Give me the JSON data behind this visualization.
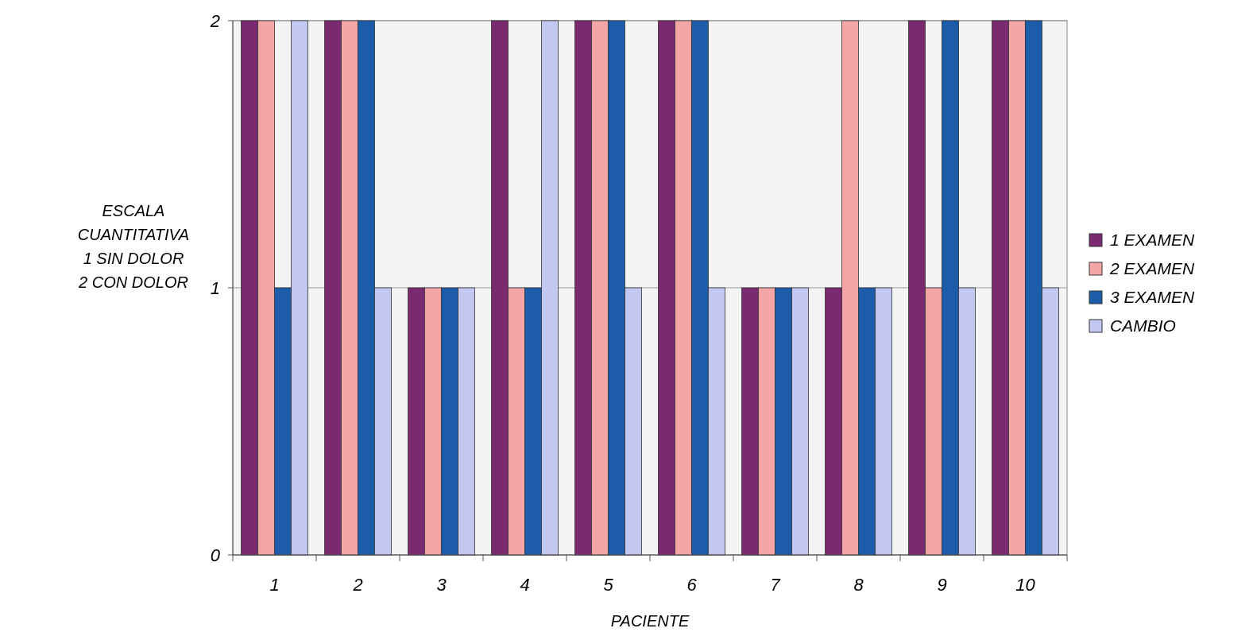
{
  "chart_data": {
    "type": "bar",
    "xlabel": "PACIENTE",
    "ylabel": "ESCALA\nCUANTITATIVA\n1 SIN DOLOR\n2 CON DOLOR",
    "categories": [
      "1",
      "2",
      "3",
      "4",
      "5",
      "6",
      "7",
      "8",
      "9",
      "10"
    ],
    "series": [
      {
        "name": "1 EXAMEN",
        "color": "#7b2a72",
        "values": [
          2,
          2,
          1,
          2,
          2,
          2,
          1,
          1,
          2,
          2
        ]
      },
      {
        "name": "2 EXAMEN",
        "color": "#f4a6a6",
        "values": [
          2,
          2,
          1,
          1,
          2,
          2,
          1,
          2,
          1,
          2
        ]
      },
      {
        "name": "3 EXAMEN",
        "color": "#1c5ca8",
        "values": [
          1,
          2,
          1,
          1,
          2,
          2,
          1,
          1,
          2,
          2
        ]
      },
      {
        "name": "CAMBIO",
        "color": "#c2c8f2",
        "values": [
          2,
          1,
          1,
          2,
          1,
          1,
          1,
          1,
          1,
          1
        ]
      }
    ],
    "ylim": [
      0,
      2
    ],
    "yticks": [
      0,
      1,
      2
    ],
    "grid": "y",
    "legend": "right"
  }
}
